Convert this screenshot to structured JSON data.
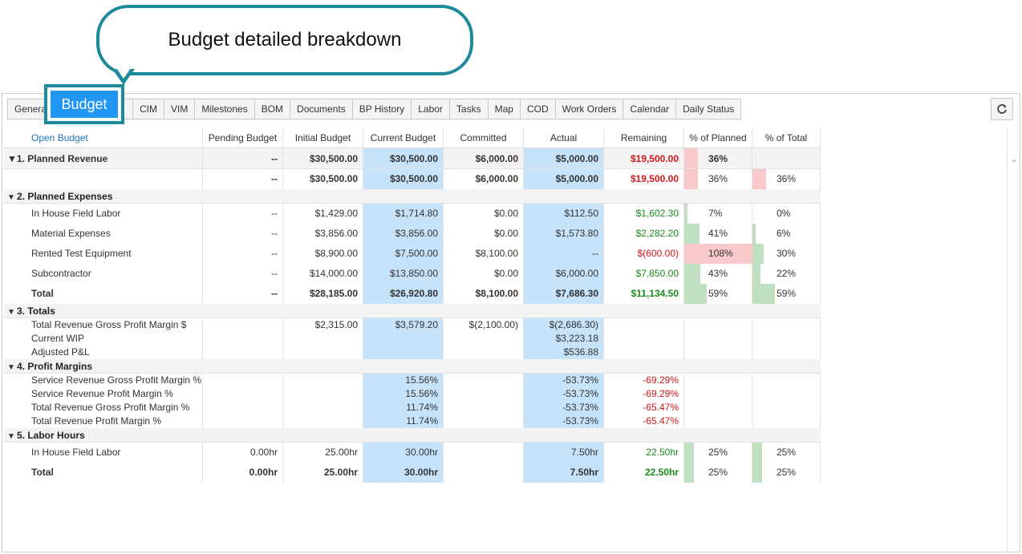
{
  "callout": {
    "text": "Budget detailed breakdown"
  },
  "tabs": [
    "General",
    "Budget",
    "CIM",
    "VIM",
    "Milestones",
    "BOM",
    "Documents",
    "BP History",
    "Labor",
    "Tasks",
    "Map",
    "COD",
    "Work Orders",
    "Calendar",
    "Daily Status"
  ],
  "active_tab": "Budget",
  "header": {
    "open_budget": "Open Budget",
    "columns": [
      "Pending Budget",
      "Initial Budget",
      "Current Budget",
      "Committed",
      "Actual",
      "Remaining",
      "% of Planned",
      "% of Total"
    ]
  },
  "colors": {
    "accent": "#2196f3",
    "callout_border": "#1d8a9c",
    "blue_cell": "#c6e3fa",
    "red": "#d11919",
    "green": "#1a8a1a",
    "pink_bar": "#f8c9c9",
    "green_bar": "#bfe0c0"
  },
  "sections": {
    "s1": {
      "title": "1. Planned Revenue",
      "summary": {
        "pending": "--",
        "initial": "$30,500.00",
        "current": "$30,500.00",
        "committed": "$6,000.00",
        "actual": "$5,000.00",
        "remaining": "$19,500.00",
        "pct_planned": "36%",
        "pct_planned_value": 36
      },
      "row": {
        "pending": "--",
        "initial": "$30,500.00",
        "current": "$30,500.00",
        "committed": "$6,000.00",
        "actual": "$5,000.00",
        "remaining": "$19,500.00",
        "pct_planned": "36%",
        "pct_total": "36%",
        "pct_planned_value": 36,
        "pct_total_value": 36
      }
    },
    "s2": {
      "title": "2. Planned Expenses",
      "rows": [
        {
          "label": "In House Field Labor",
          "pending": "--",
          "initial": "$1,429.00",
          "current": "$1,714.80",
          "committed": "$0.00",
          "actual": "$112.50",
          "remaining": "$1,602.30",
          "pct_planned": "7%",
          "pct_total": "0%",
          "pct_planned_value": 7,
          "pct_total_value": 0
        },
        {
          "label": "Material Expenses",
          "pending": "--",
          "initial": "$3,856.00",
          "current": "$3,856.00",
          "committed": "$0.00",
          "actual": "$1,573.80",
          "remaining": "$2,282.20",
          "pct_planned": "41%",
          "pct_total": "6%",
          "pct_planned_value": 41,
          "pct_total_value": 6
        },
        {
          "label": "Rented Test Equipment",
          "pending": "--",
          "initial": "$8,900.00",
          "current": "$7,500.00",
          "committed": "$8,100.00",
          "actual": "--",
          "remaining": "$(600.00)",
          "pct_planned": "108%",
          "pct_total": "30%",
          "pct_planned_value": 108,
          "pct_total_value": 30
        },
        {
          "label": "Subcontractor",
          "pending": "--",
          "initial": "$14,000.00",
          "current": "$13,850.00",
          "committed": "$0.00",
          "actual": "$6,000.00",
          "remaining": "$7,850.00",
          "pct_planned": "43%",
          "pct_total": "22%",
          "pct_planned_value": 43,
          "pct_total_value": 22
        }
      ],
      "total": {
        "label": "Total",
        "pending": "--",
        "initial": "$28,185.00",
        "current": "$26,920.80",
        "committed": "$8,100.00",
        "actual": "$7,686.30",
        "remaining": "$11,134.50",
        "pct_planned": "59%",
        "pct_total": "59%",
        "pct_planned_value": 59,
        "pct_total_value": 59
      }
    },
    "s3": {
      "title": "3. Totals",
      "labels": [
        "Total Revenue Gross Profit Margin $",
        "Current WIP",
        "Adjusted P&L"
      ],
      "initial": "$2,315.00",
      "current": "$3,579.20",
      "committed": "$(2,100.00)",
      "actual": [
        "$(2,686.30)",
        "$3,223.18",
        "$536.88"
      ]
    },
    "s4": {
      "title": "4. Profit Margins",
      "rows": [
        {
          "label": "Service Revenue Gross Profit Margin %",
          "current": "15.56%",
          "actual": "-53.73%",
          "remaining": "-69.29%"
        },
        {
          "label": "Service Revenue Profit Margin %",
          "current": "15.56%",
          "actual": "-53.73%",
          "remaining": "-69.29%"
        },
        {
          "label": "Total Revenue Gross Profit Margin %",
          "current": "11.74%",
          "actual": "-53.73%",
          "remaining": "-65.47%"
        },
        {
          "label": "Total Revenue Profit Margin %",
          "current": "11.74%",
          "actual": "-53.73%",
          "remaining": "-65.47%"
        }
      ]
    },
    "s5": {
      "title": "5. Labor Hours",
      "rows": [
        {
          "label": "In House Field Labor",
          "pending": "0.00hr",
          "initial": "25.00hr",
          "current": "30.00hr",
          "actual": "7.50hr",
          "remaining": "22.50hr",
          "pct_planned": "25%",
          "pct_total": "25%",
          "pct_planned_value": 25,
          "pct_total_value": 25
        }
      ],
      "total": {
        "label": "Total",
        "pending": "0.00hr",
        "initial": "25.00hr",
        "current": "30.00hr",
        "actual": "7.50hr",
        "remaining": "22.50hr",
        "pct_planned": "25%",
        "pct_total": "25%",
        "pct_planned_value": 25,
        "pct_total_value": 25
      }
    }
  }
}
